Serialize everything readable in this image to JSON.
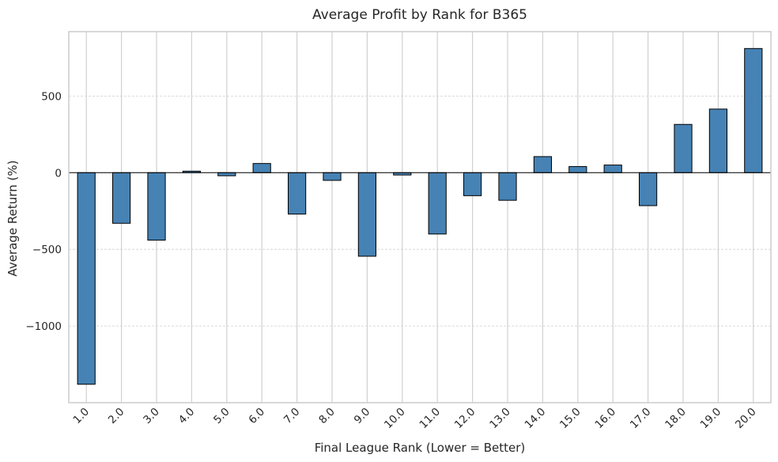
{
  "chart_data": {
    "type": "bar",
    "title": "Average Profit by Rank for B365",
    "xlabel": "Final League Rank (Lower = Better)",
    "ylabel": "Average Return (%)",
    "categories": [
      "1.0",
      "2.0",
      "3.0",
      "4.0",
      "5.0",
      "6.0",
      "7.0",
      "8.0",
      "9.0",
      "10.0",
      "11.0",
      "12.0",
      "13.0",
      "14.0",
      "15.0",
      "16.0",
      "17.0",
      "18.0",
      "19.0",
      "20.0"
    ],
    "values": [
      -1380,
      -330,
      -440,
      10,
      -20,
      60,
      -270,
      -50,
      -545,
      -15,
      -400,
      -150,
      -180,
      105,
      40,
      50,
      -215,
      315,
      415,
      810
    ],
    "ylim": [
      -1500,
      920
    ],
    "yticks": [
      -1000,
      -500,
      0,
      500
    ],
    "ytick_labels": [
      "−1000",
      "−500",
      "0",
      "500"
    ],
    "grid": true,
    "colors": {
      "bar": "#4682b4",
      "edge": "#000000",
      "grid": "#d0d0d0",
      "spine": "#cccccc"
    }
  }
}
